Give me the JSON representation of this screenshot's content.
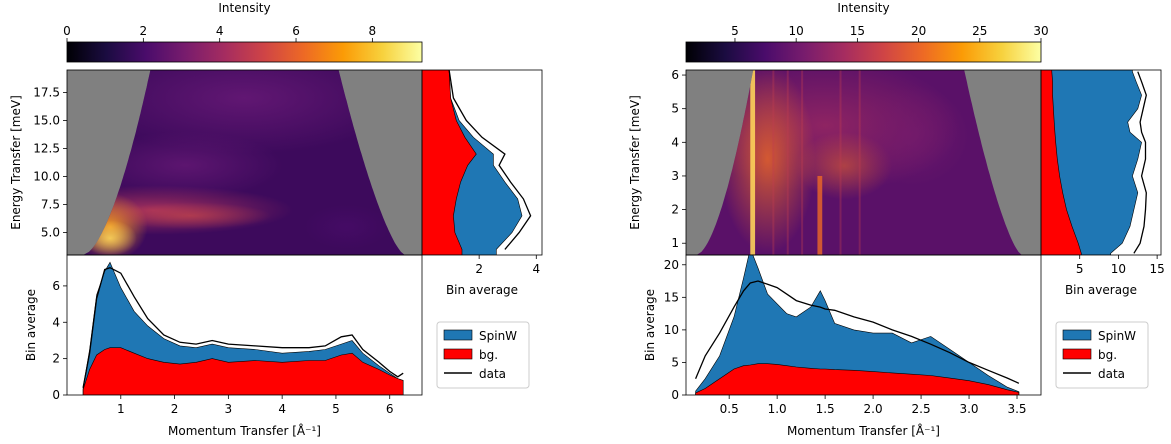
{
  "figure": {
    "legend_labels": [
      "SpinW",
      "bg.",
      "data"
    ],
    "colors": {
      "spinw": "#1f77b4",
      "bg": "#ff0000",
      "data": "#000000",
      "mask": "#808080",
      "colormap": [
        "#000004",
        "#1b0c41",
        "#4a0c6b",
        "#781c6d",
        "#a52c60",
        "#cf4446",
        "#ed6925",
        "#fb9b06",
        "#f7d13d",
        "#fcffa4"
      ]
    }
  },
  "chart_data": [
    {
      "type": "heatmap",
      "panel": "left",
      "colorbar": {
        "label": "Intensity",
        "range": [
          0,
          9.3
        ],
        "ticks": [
          0,
          2,
          4,
          6,
          8
        ]
      },
      "map": {
        "xlim": [
          0.0,
          6.6
        ],
        "ylim": [
          3.0,
          19.5
        ],
        "ylabel": "Energy Transfer [meV]",
        "yticks": [
          5.0,
          7.5,
          10.0,
          12.5,
          15.0,
          17.5
        ]
      },
      "side_cut": {
        "type": "area",
        "xlabel": "Bin average",
        "xlim": [
          0,
          4.2
        ],
        "xticks": [
          2,
          4
        ],
        "y": [
          3.5,
          5,
          6.5,
          8,
          9.5,
          11,
          12,
          13.5,
          15,
          17,
          19.5
        ],
        "bg": [
          1.4,
          1.15,
          1.1,
          1.2,
          1.35,
          1.6,
          1.9,
          1.5,
          1.2,
          1.0,
          0.95
        ],
        "spinw": [
          2.6,
          3.15,
          3.5,
          3.35,
          2.9,
          2.5,
          2.5,
          1.8,
          1.3,
          1.0,
          0.95
        ],
        "data": [
          2.9,
          3.4,
          3.8,
          3.55,
          3.1,
          2.7,
          2.9,
          2.1,
          1.55,
          1.1,
          0.95
        ]
      },
      "bottom_cut": {
        "type": "area",
        "xlabel": "Momentum Transfer [Å⁻¹]",
        "ylabel": "Bin average",
        "xlim": [
          0.0,
          6.6
        ],
        "ylim": [
          0,
          7.7
        ],
        "xticks": [
          1,
          2,
          3,
          4,
          5,
          6
        ],
        "yticks": [
          0,
          2,
          4,
          6
        ],
        "x": [
          0.3,
          0.42,
          0.55,
          0.7,
          0.8,
          1.0,
          1.25,
          1.5,
          1.8,
          2.1,
          2.4,
          2.7,
          3.0,
          3.5,
          4.0,
          4.5,
          4.8,
          5.1,
          5.3,
          5.5,
          5.8,
          6.0,
          6.15,
          6.25
        ],
        "bg": [
          0.3,
          1.4,
          2.2,
          2.5,
          2.6,
          2.6,
          2.3,
          2.0,
          1.8,
          1.7,
          1.8,
          2.0,
          1.8,
          1.9,
          1.8,
          1.9,
          1.9,
          2.2,
          2.3,
          1.8,
          1.4,
          1.1,
          0.9,
          0.8
        ],
        "spinw": [
          0.4,
          2.5,
          5.5,
          6.8,
          7.3,
          5.9,
          4.6,
          3.8,
          3.1,
          2.7,
          2.6,
          2.8,
          2.6,
          2.5,
          2.3,
          2.4,
          2.5,
          2.8,
          3.0,
          2.3,
          1.6,
          1.2,
          0.9,
          0.8
        ],
        "data": [
          0.4,
          2.3,
          5.3,
          6.9,
          7.0,
          6.7,
          5.4,
          4.2,
          3.3,
          2.9,
          2.8,
          3.0,
          2.8,
          2.7,
          2.6,
          2.6,
          2.7,
          3.2,
          3.3,
          2.5,
          1.8,
          1.3,
          1.0,
          1.2
        ]
      }
    },
    {
      "type": "heatmap",
      "panel": "right",
      "colorbar": {
        "label": "Intensity",
        "range": [
          1,
          30
        ],
        "ticks": [
          5,
          10,
          15,
          20,
          25,
          30
        ]
      },
      "map": {
        "xlim": [
          0.05,
          3.75
        ],
        "ylim": [
          0.65,
          6.15
        ],
        "ylabel": "Energy Transfer [meV]",
        "yticks": [
          1,
          2,
          3,
          4,
          5,
          6
        ]
      },
      "side_cut": {
        "type": "area",
        "xlabel": "Bin average",
        "xlim": [
          0,
          15.5
        ],
        "xticks": [
          5,
          10,
          15
        ],
        "y": [
          0.7,
          1.0,
          1.5,
          2.0,
          2.5,
          3.0,
          3.5,
          4.0,
          4.3,
          4.6,
          5.0,
          5.4,
          5.8,
          6.1
        ],
        "bg": [
          5.2,
          4.8,
          4.0,
          3.3,
          2.8,
          2.4,
          2.1,
          1.9,
          1.8,
          1.7,
          1.6,
          1.5,
          1.5,
          1.4
        ],
        "spinw": [
          9.0,
          10.5,
          11.5,
          12.0,
          12.5,
          11.8,
          12.5,
          13.0,
          11.5,
          11.2,
          12.5,
          13.0,
          12.3,
          11.8
        ],
        "data": [
          12.0,
          12.8,
          13.3,
          13.5,
          13.6,
          13.0,
          13.5,
          13.5,
          13.0,
          12.8,
          13.2,
          13.6,
          13.0,
          12.5
        ]
      },
      "bottom_cut": {
        "type": "area",
        "xlabel": "Momentum Transfer [Å⁻¹]",
        "ylabel": "Bin average",
        "xlim": [
          0.05,
          3.75
        ],
        "ylim": [
          0,
          21.5
        ],
        "xticks": [
          0.5,
          1.0,
          1.5,
          2.0,
          2.5,
          3.0,
          3.5
        ],
        "yticks": [
          0,
          5,
          10,
          15,
          20
        ],
        "x": [
          0.15,
          0.25,
          0.4,
          0.55,
          0.65,
          0.72,
          0.8,
          0.9,
          1.0,
          1.1,
          1.2,
          1.35,
          1.45,
          1.5,
          1.6,
          1.8,
          2.0,
          2.2,
          2.4,
          2.6,
          2.8,
          3.0,
          3.2,
          3.4,
          3.52
        ],
        "bg": [
          0.3,
          1.0,
          2.5,
          4.0,
          4.5,
          4.6,
          4.8,
          4.8,
          4.7,
          4.5,
          4.3,
          4.1,
          4.0,
          4.0,
          3.9,
          3.8,
          3.6,
          3.4,
          3.2,
          3.0,
          2.6,
          2.2,
          1.6,
          0.8,
          0.4
        ],
        "spinw": [
          0.6,
          2.5,
          6.0,
          12.0,
          18.0,
          22.5,
          19.5,
          15.5,
          14.0,
          12.5,
          12.0,
          13.5,
          16.0,
          14.5,
          11.0,
          10.0,
          9.5,
          9.5,
          8.0,
          9.0,
          7.0,
          5.0,
          3.0,
          1.2,
          0.5
        ],
        "data": [
          2.5,
          6.0,
          9.5,
          13.5,
          16.0,
          17.2,
          17.5,
          17.0,
          16.5,
          15.5,
          14.5,
          13.8,
          13.5,
          13.2,
          13.0,
          12.0,
          11.2,
          10.0,
          9.0,
          7.8,
          6.5,
          5.0,
          3.8,
          2.6,
          1.8
        ]
      }
    }
  ]
}
